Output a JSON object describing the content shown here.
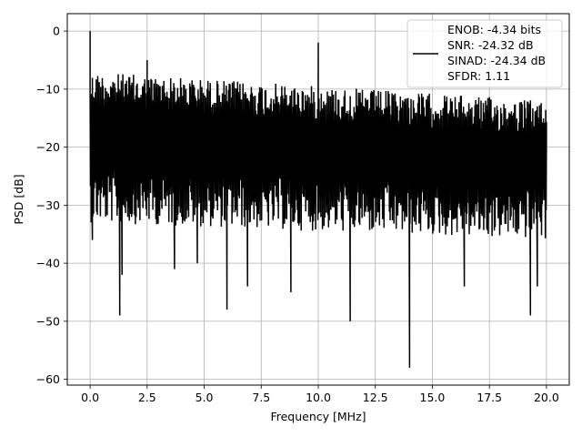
{
  "chart_data": {
    "type": "line",
    "title": "",
    "xlabel": "Frequency [MHz]",
    "ylabel": "PSD [dB]",
    "xlim": [
      -1.0,
      21.0
    ],
    "ylim": [
      -61.0,
      3.0
    ],
    "xticks": [
      0.0,
      2.5,
      5.0,
      7.5,
      10.0,
      12.5,
      15.0,
      17.5,
      20.0
    ],
    "xtick_labels": [
      "0.0",
      "2.5",
      "5.0",
      "7.5",
      "10.0",
      "12.5",
      "15.0",
      "17.5",
      "20.0"
    ],
    "yticks": [
      0,
      -10,
      -20,
      -30,
      -40,
      -50,
      -60
    ],
    "ytick_labels": [
      "0",
      "−10",
      "−20",
      "−30",
      "−40",
      "−50",
      "−60"
    ],
    "grid": true,
    "legend_placement": "top-right",
    "line_color": "#000000",
    "series": [
      {
        "legend_lines": [
          "ENOB: -4.34 bits",
          "SNR: -24.32 dB",
          "SINAD: -24.34 dB",
          "SFDR: 1.11"
        ],
        "description_points": [
          {
            "x": 0.0,
            "y": 0.0
          },
          {
            "x": 0.05,
            "y": -24.0
          },
          {
            "x": 0.1,
            "y": -36.0
          },
          {
            "x": 1.3,
            "y": -49.0
          },
          {
            "x": 1.4,
            "y": -42.0
          },
          {
            "x": 2.5,
            "y": -5.0
          },
          {
            "x": 3.7,
            "y": -41.0
          },
          {
            "x": 4.7,
            "y": -40.0
          },
          {
            "x": 6.0,
            "y": -48.0
          },
          {
            "x": 6.9,
            "y": -44.0
          },
          {
            "x": 8.8,
            "y": -45.0
          },
          {
            "x": 10.0,
            "y": -2.0
          },
          {
            "x": 11.4,
            "y": -50.0
          },
          {
            "x": 14.0,
            "y": -58.0
          },
          {
            "x": 16.4,
            "y": -44.0
          },
          {
            "x": 19.3,
            "y": -49.0
          },
          {
            "x": 19.6,
            "y": -44.0
          },
          {
            "x": 20.0,
            "y": -19.0
          }
        ],
        "x_start": 0.0,
        "x_end": 20.0,
        "envelope_upper": -7.0,
        "envelope_lower": -30.0,
        "trend_upper_end": -12.0,
        "trend_lower_end": -33.0
      }
    ]
  }
}
